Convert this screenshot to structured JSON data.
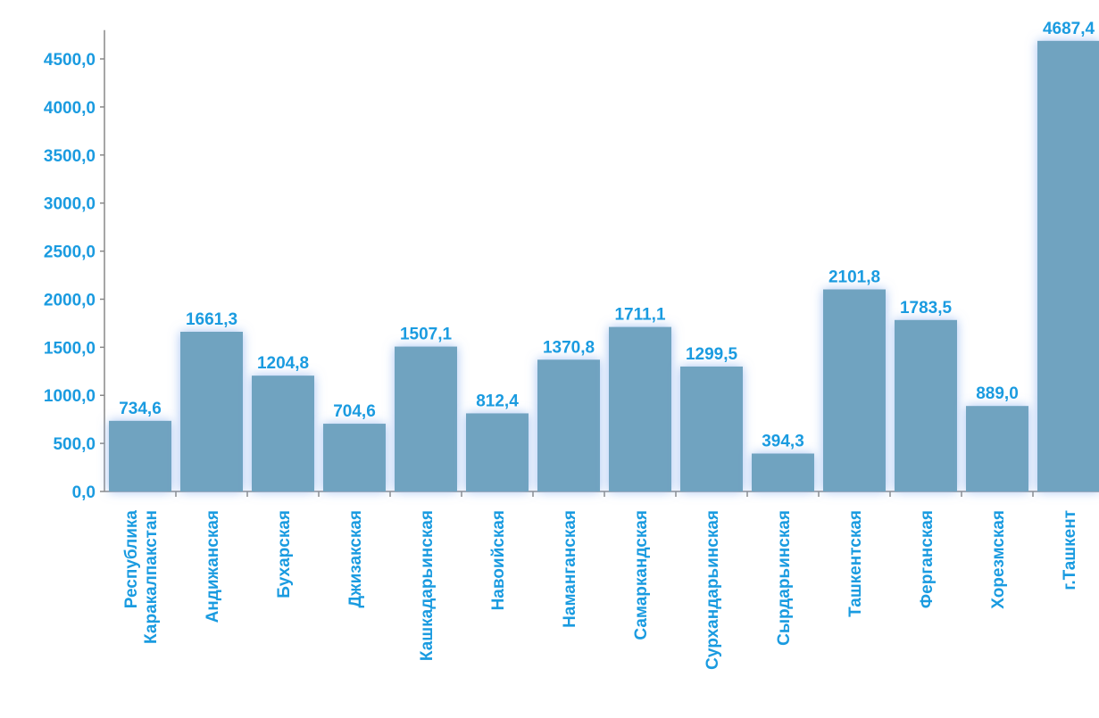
{
  "chart_data": {
    "type": "bar",
    "categories": [
      "Республика Каракалпакстан",
      "Андижанская",
      "Бухарская",
      "Джизакская",
      "Кашкадарьинская",
      "Навоийская",
      "Наманганская",
      "Самаркандская",
      "Сурхандарьинская",
      "Сырдарьинская",
      "Ташкентская",
      "Ферганская",
      "Хорезмская",
      "г.Ташкент"
    ],
    "values": [
      734.6,
      1661.3,
      1204.8,
      704.6,
      1507.1,
      812.4,
      1370.8,
      1711.1,
      1299.5,
      394.3,
      2101.8,
      1783.5,
      889.0,
      4687.4
    ],
    "value_labels": [
      "734,6",
      "1661,3",
      "1204,8",
      "704,6",
      "1507,1",
      "812,4",
      "1370,8",
      "1711,1",
      "1299,5",
      "394,3",
      "2101,8",
      "1783,5",
      "889,0",
      "4687,4"
    ],
    "color": "#6fa3c0",
    "ylim": [
      0,
      4800
    ],
    "yticks": [
      {
        "value": 0,
        "label": "0,0"
      },
      {
        "value": 500,
        "label": "500,0"
      },
      {
        "value": 1000,
        "label": "1000,0"
      },
      {
        "value": 1500,
        "label": "1500,0"
      },
      {
        "value": 2000,
        "label": "2000,0"
      },
      {
        "value": 2500,
        "label": "2500,0"
      },
      {
        "value": 3000,
        "label": "3000,0"
      },
      {
        "value": 3500,
        "label": "3500,0"
      },
      {
        "value": 4000,
        "label": "4000,0"
      },
      {
        "value": 4500,
        "label": "4500,0"
      }
    ],
    "grid": false
  }
}
